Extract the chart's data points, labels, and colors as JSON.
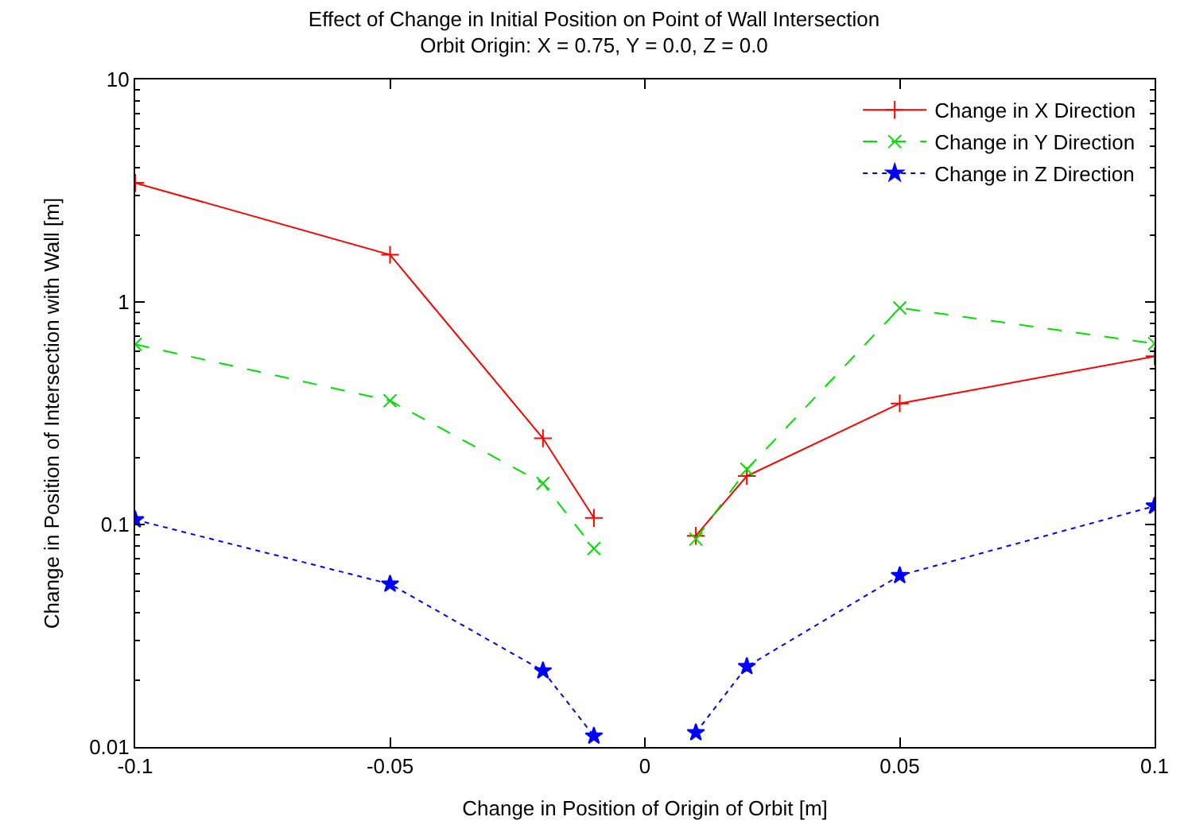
{
  "chart_data": {
    "type": "line",
    "title": "Effect of Change in Initial Position on Point of Wall Intersection",
    "subtitle": "Orbit Origin: X = 0.75, Y = 0.0, Z = 0.0",
    "xlabel": "Change in Position of Origin of Orbit [m]",
    "ylabel": "Change in Position of Intersection with Wall [m]",
    "x": [
      -0.1,
      -0.05,
      -0.02,
      -0.01,
      0,
      0.01,
      0.02,
      0.05,
      0.1
    ],
    "series": [
      {
        "name": "Change in X Direction",
        "color": "#ff0000",
        "marker": "cross",
        "line_style": "solid",
        "values": [
          3.43,
          1.63,
          0.244,
          0.107,
          null,
          0.089,
          0.165,
          0.35,
          0.57
        ]
      },
      {
        "name": "Change in Y Direction",
        "color": "#00e000",
        "marker": "x",
        "line_style": "dashed",
        "values": [
          0.645,
          0.36,
          0.153,
          0.078,
          null,
          0.086,
          0.177,
          0.94,
          0.65
        ]
      },
      {
        "name": "Change in Z Direction",
        "color": "#0000ff",
        "marker": "star",
        "line_style": "dotted",
        "values": [
          0.105,
          0.054,
          0.022,
          0.0112,
          null,
          0.0116,
          0.023,
          0.059,
          0.121
        ]
      }
    ],
    "log": "y",
    "legend": "top right",
    "xlim": [
      -0.1,
      0.1
    ],
    "xticks": [
      -0.1,
      -0.05,
      0,
      0.05,
      0.1
    ],
    "ylim": [
      0.01,
      10
    ],
    "yticks": [
      0.01,
      0.1,
      1,
      10
    ]
  }
}
